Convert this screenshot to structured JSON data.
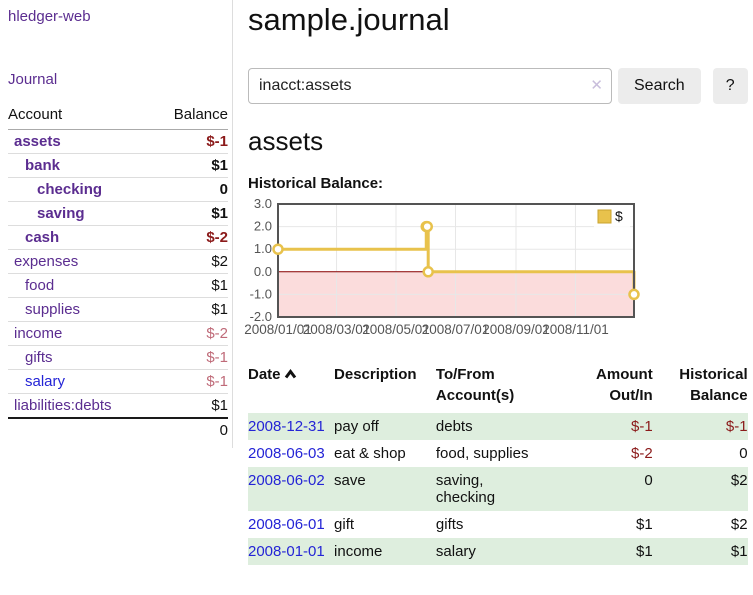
{
  "app": {
    "brand": "hledger-web",
    "nav_journal": "Journal"
  },
  "sidebar": {
    "header": {
      "account": "Account",
      "balance": "Balance"
    },
    "accounts": [
      {
        "name": "assets",
        "balance": "$-1"
      },
      {
        "name": "bank",
        "balance": "$1"
      },
      {
        "name": "checking",
        "balance": "0"
      },
      {
        "name": "saving",
        "balance": "$1"
      },
      {
        "name": "cash",
        "balance": "$-2"
      },
      {
        "name": "expenses",
        "balance": "$2"
      },
      {
        "name": "food",
        "balance": "$1"
      },
      {
        "name": "supplies",
        "balance": "$1"
      },
      {
        "name": "income",
        "balance": "$-2"
      },
      {
        "name": "gifts",
        "balance": "$-1"
      },
      {
        "name": "salary",
        "balance": "$-1"
      },
      {
        "name": "liabilities:debts",
        "balance": "$1"
      }
    ],
    "total": "0"
  },
  "header": {
    "title": "sample.journal"
  },
  "search": {
    "value": "inacct:assets",
    "clear_label": "✕",
    "button_label": "Search",
    "help_label": "?"
  },
  "account_page": {
    "title": "assets",
    "chart_label": "Historical Balance:"
  },
  "chart_data": {
    "type": "line",
    "step": true,
    "title": "Historical Balance:",
    "series": [
      {
        "name": "$",
        "color": "#e8c24c",
        "points": [
          [
            "2008-01-01",
            1.0
          ],
          [
            "2008-06-01",
            2.0
          ],
          [
            "2008-06-02",
            2.0
          ],
          [
            "2008-06-03",
            0.0
          ],
          [
            "2008-12-31",
            -1.0
          ]
        ]
      }
    ],
    "xlim": [
      "2008-01-01",
      "2008-12-31"
    ],
    "ylim": [
      -2.0,
      3.0
    ],
    "x_ticks": [
      "2008/01/01",
      "2008/03/01",
      "2008/05/01",
      "2008/07/01",
      "2008/09/01",
      "2008/11/01"
    ],
    "y_ticks": [
      3.0,
      2.0,
      1.0,
      0.0,
      -1.0,
      -2.0
    ],
    "grid": true,
    "negative_region_fill": "#fbdcdc",
    "zero_line_color": "#8b0000",
    "legend": {
      "position": "top-right",
      "label": "$"
    }
  },
  "register": {
    "headers": {
      "date": {
        "l1": "Date",
        "l2": ""
      },
      "description": {
        "l1": "Description",
        "l2": ""
      },
      "tofrom": {
        "l1": "To/From",
        "l2": "Account(s)"
      },
      "amount": {
        "l1": "Amount",
        "l2": "Out/In"
      },
      "balance": {
        "l1": "Historical",
        "l2": "Balance"
      }
    },
    "rows": [
      {
        "date": "2008-12-31",
        "description": "pay off",
        "accounts": "debts",
        "amount": "$-1",
        "balance": "$-1"
      },
      {
        "date": "2008-06-03",
        "description": "eat & shop",
        "accounts": "food, supplies",
        "amount": "$-2",
        "balance": "0"
      },
      {
        "date": "2008-06-02",
        "description": "save",
        "accounts": "saving,\nchecking",
        "amount": "0",
        "balance": "$2"
      },
      {
        "date": "2008-06-01",
        "description": "gift",
        "accounts": "gifts",
        "amount": "$1",
        "balance": "$2"
      },
      {
        "date": "2008-01-01",
        "description": "income",
        "accounts": "salary",
        "amount": "$1",
        "balance": "$1"
      }
    ]
  }
}
